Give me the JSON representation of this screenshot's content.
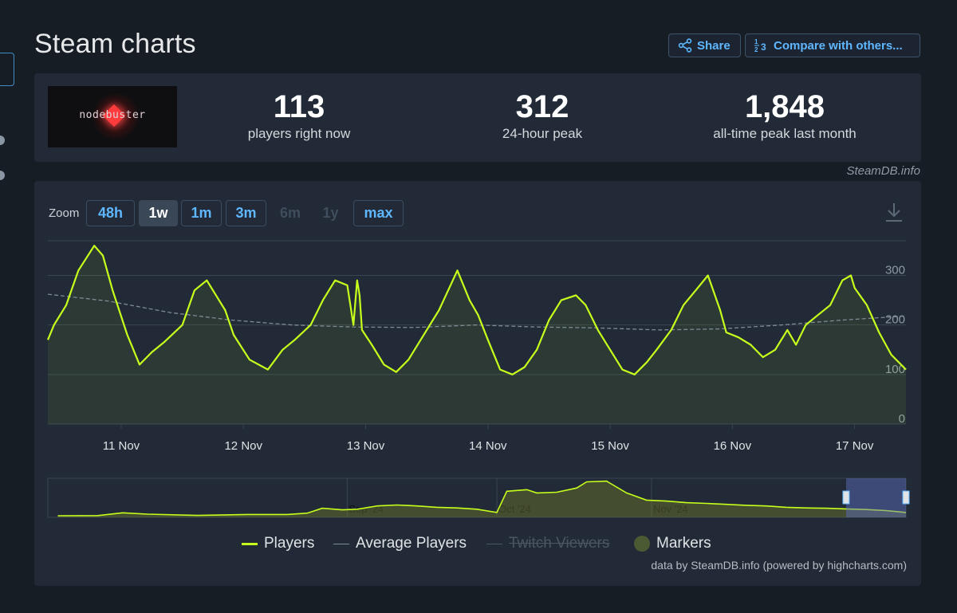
{
  "page": {
    "title": "Steam charts"
  },
  "actions": {
    "share": "Share",
    "compare": "Compare with others..."
  },
  "game": {
    "logo_text": "nodebuster"
  },
  "stats": [
    {
      "value": "113",
      "label": "players right now"
    },
    {
      "value": "312",
      "label": "24-hour peak"
    },
    {
      "value": "1,848",
      "label": "all-time peak last month"
    }
  ],
  "credit_top": "SteamDB.info",
  "zoom": {
    "label": "Zoom",
    "buttons": [
      {
        "label": "48h",
        "state": "enabled"
      },
      {
        "label": "1w",
        "state": "active"
      },
      {
        "label": "1m",
        "state": "enabled"
      },
      {
        "label": "3m",
        "state": "enabled"
      },
      {
        "label": "6m",
        "state": "disabled"
      },
      {
        "label": "1y",
        "state": "disabled"
      },
      {
        "label": "max",
        "state": "enabled"
      }
    ],
    "download_icon": "download-icon"
  },
  "legend": {
    "players": "Players",
    "average": "Average Players",
    "twitch": "Twitch Viewers",
    "markers": "Markers"
  },
  "credit_bottom": "data by SteamDB.info (powered by highcharts.com)",
  "colors": {
    "players": "#c6ff1c",
    "average": "#7f8a95",
    "accent": "#5fb7ff",
    "markers": "#4a5a32"
  },
  "chart_data": [
    {
      "type": "line",
      "x_tick_labels": [
        "11 Nov",
        "12 Nov",
        "13 Nov",
        "14 Nov",
        "15 Nov",
        "16 Nov",
        "17 Nov"
      ],
      "y_tick_labels": [
        "0",
        "100",
        "200",
        "300"
      ],
      "ylim": [
        0,
        370
      ],
      "xlim_days": [
        10.4,
        17.42
      ],
      "grid": true,
      "series": [
        {
          "name": "Players",
          "x_days": [
            10.4,
            10.45,
            10.55,
            10.65,
            10.78,
            10.85,
            10.93,
            11.05,
            11.15,
            11.25,
            11.35,
            11.5,
            11.6,
            11.7,
            11.85,
            11.92,
            12.05,
            12.2,
            12.32,
            12.42,
            12.55,
            12.65,
            12.75,
            12.85,
            12.9,
            12.93,
            12.95,
            12.97,
            13.05,
            13.15,
            13.25,
            13.35,
            13.45,
            13.6,
            13.75,
            13.85,
            13.92,
            14.0,
            14.1,
            14.2,
            14.3,
            14.4,
            14.5,
            14.6,
            14.72,
            14.8,
            14.9,
            15.0,
            15.1,
            15.2,
            15.3,
            15.38,
            15.5,
            15.6,
            15.7,
            15.8,
            15.9,
            15.95,
            16.05,
            16.15,
            16.25,
            16.35,
            16.45,
            16.52,
            16.6,
            16.7,
            16.8,
            16.9,
            16.97,
            17.0,
            17.1,
            17.2,
            17.3,
            17.42
          ],
          "y": [
            170,
            200,
            240,
            310,
            360,
            340,
            270,
            180,
            120,
            145,
            165,
            200,
            270,
            290,
            230,
            180,
            130,
            110,
            150,
            170,
            200,
            250,
            290,
            280,
            200,
            290,
            260,
            190,
            160,
            120,
            105,
            130,
            170,
            230,
            310,
            250,
            220,
            170,
            110,
            100,
            115,
            150,
            210,
            250,
            260,
            240,
            190,
            150,
            110,
            100,
            125,
            150,
            190,
            240,
            270,
            300,
            230,
            185,
            175,
            160,
            135,
            150,
            190,
            160,
            200,
            220,
            240,
            290,
            300,
            275,
            240,
            185,
            140,
            110
          ]
        },
        {
          "name": "Average Players",
          "x_days": [
            10.4,
            10.9,
            11.4,
            11.9,
            12.4,
            12.9,
            13.4,
            13.9,
            14.4,
            14.9,
            15.4,
            15.9,
            16.4,
            16.9,
            17.42
          ],
          "y": [
            262,
            248,
            225,
            210,
            200,
            196,
            195,
            200,
            196,
            194,
            190,
            192,
            200,
            210,
            218
          ]
        }
      ]
    },
    {
      "type": "area",
      "role": "navigator",
      "x_tick_labels": [
        "Sep '24",
        "Oct '24",
        "Nov '24"
      ],
      "series": [
        {
          "name": "Players",
          "x_days": [
            -58,
            -50,
            -45,
            -40,
            -30,
            -20,
            -12,
            -8,
            -5,
            -1,
            2,
            6,
            10,
            14,
            18,
            22,
            26,
            30,
            32,
            36,
            38,
            42,
            46,
            48,
            52,
            56,
            60,
            64,
            68,
            72,
            76,
            80,
            84,
            88,
            92,
            96,
            100,
            104,
            108,
            110,
            112
          ],
          "y": [
            0,
            5,
            90,
            50,
            10,
            40,
            40,
            80,
            230,
            180,
            200,
            300,
            330,
            300,
            260,
            240,
            200,
            100,
            750,
            800,
            700,
            720,
            850,
            1040,
            1060,
            700,
            480,
            450,
            400,
            380,
            350,
            320,
            300,
            260,
            240,
            230,
            210,
            190,
            160,
            130,
            100
          ]
        }
      ],
      "selected_range_days": [
        100,
        112
      ]
    }
  ]
}
